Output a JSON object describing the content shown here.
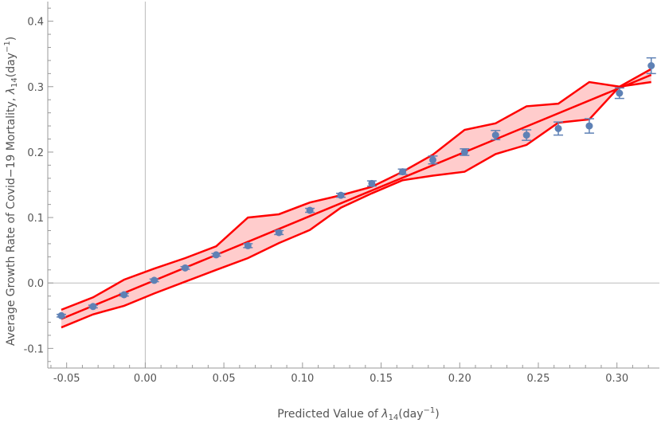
{
  "chart_data": {
    "type": "scatter",
    "xlabel": "Predicted Value of λ14(day−1)",
    "xlabel_parts": {
      "pre": "Predicted Value of ",
      "sym": "λ",
      "sub": "14",
      "unit": "(day",
      "sup": "−1",
      ")": ")"
    },
    "ylabel_parts": {
      "pre": "Average Growth Rate of Covid−19 Mortality, ",
      "sym": "λ",
      "sub": "14",
      "unit": "(day",
      "sup": "−1"
    },
    "ylabel": "Average Growth Rate of Covid−19 Mortality, λ14(day−1)",
    "xlim": [
      -0.062,
      0.327
    ],
    "ylim": [
      -0.13,
      0.43
    ],
    "xticks": [
      "-0.05",
      "0.00",
      "0.05",
      "0.10",
      "0.15",
      "0.20",
      "0.25",
      "0.30"
    ],
    "xtick_values": [
      -0.05,
      0,
      0.05,
      0.1,
      0.15,
      0.2,
      0.25,
      0.3
    ],
    "yticks": [
      "-0.1",
      "0.0",
      "0.1",
      "0.2",
      "0.3",
      "0.4"
    ],
    "ytick_values": [
      -0.1,
      0,
      0.1,
      0.2,
      0.3,
      0.4
    ],
    "grid": false,
    "x": [
      -0.0534,
      -0.0332,
      -0.0135,
      0.0057,
      0.0254,
      0.0451,
      0.0653,
      0.085,
      0.1047,
      0.1244,
      0.1441,
      0.1637,
      0.1829,
      0.2031,
      0.2228,
      0.2425,
      0.2627,
      0.2824,
      0.3016,
      0.3218
    ],
    "points": {
      "y": [
        -0.05,
        -0.036,
        -0.018,
        0.004,
        0.023,
        0.043,
        0.057,
        0.077,
        0.111,
        0.134,
        0.152,
        0.17,
        0.188,
        0.2,
        0.226,
        0.226,
        0.236,
        0.24,
        0.29,
        0.332
      ],
      "err": [
        0.002,
        0.002,
        0.002,
        0.002,
        0.002,
        0.002,
        0.003,
        0.003,
        0.003,
        0.003,
        0.004,
        0.004,
        0.006,
        0.005,
        0.007,
        0.008,
        0.01,
        0.011,
        0.008,
        0.012
      ],
      "color": "#5e81b5"
    },
    "fit": {
      "x": [
        -0.0534,
        0.3218
      ],
      "y": [
        -0.055,
        0.318
      ],
      "color": "#ff0000"
    },
    "band": {
      "upper": [
        -0.041,
        -0.022,
        0.005,
        0.022,
        0.038,
        0.056,
        0.1,
        0.105,
        0.123,
        0.134,
        0.147,
        0.17,
        0.196,
        0.234,
        0.244,
        0.27,
        0.274,
        0.307,
        0.3,
        0.327
      ],
      "lower": [
        -0.068,
        -0.048,
        -0.035,
        -0.016,
        0.002,
        0.02,
        0.038,
        0.061,
        0.081,
        0.115,
        0.137,
        0.157,
        0.164,
        0.17,
        0.197,
        0.211,
        0.245,
        0.25,
        0.3,
        0.307
      ],
      "fill": "#ffcccc",
      "line": "#ff0000"
    }
  }
}
